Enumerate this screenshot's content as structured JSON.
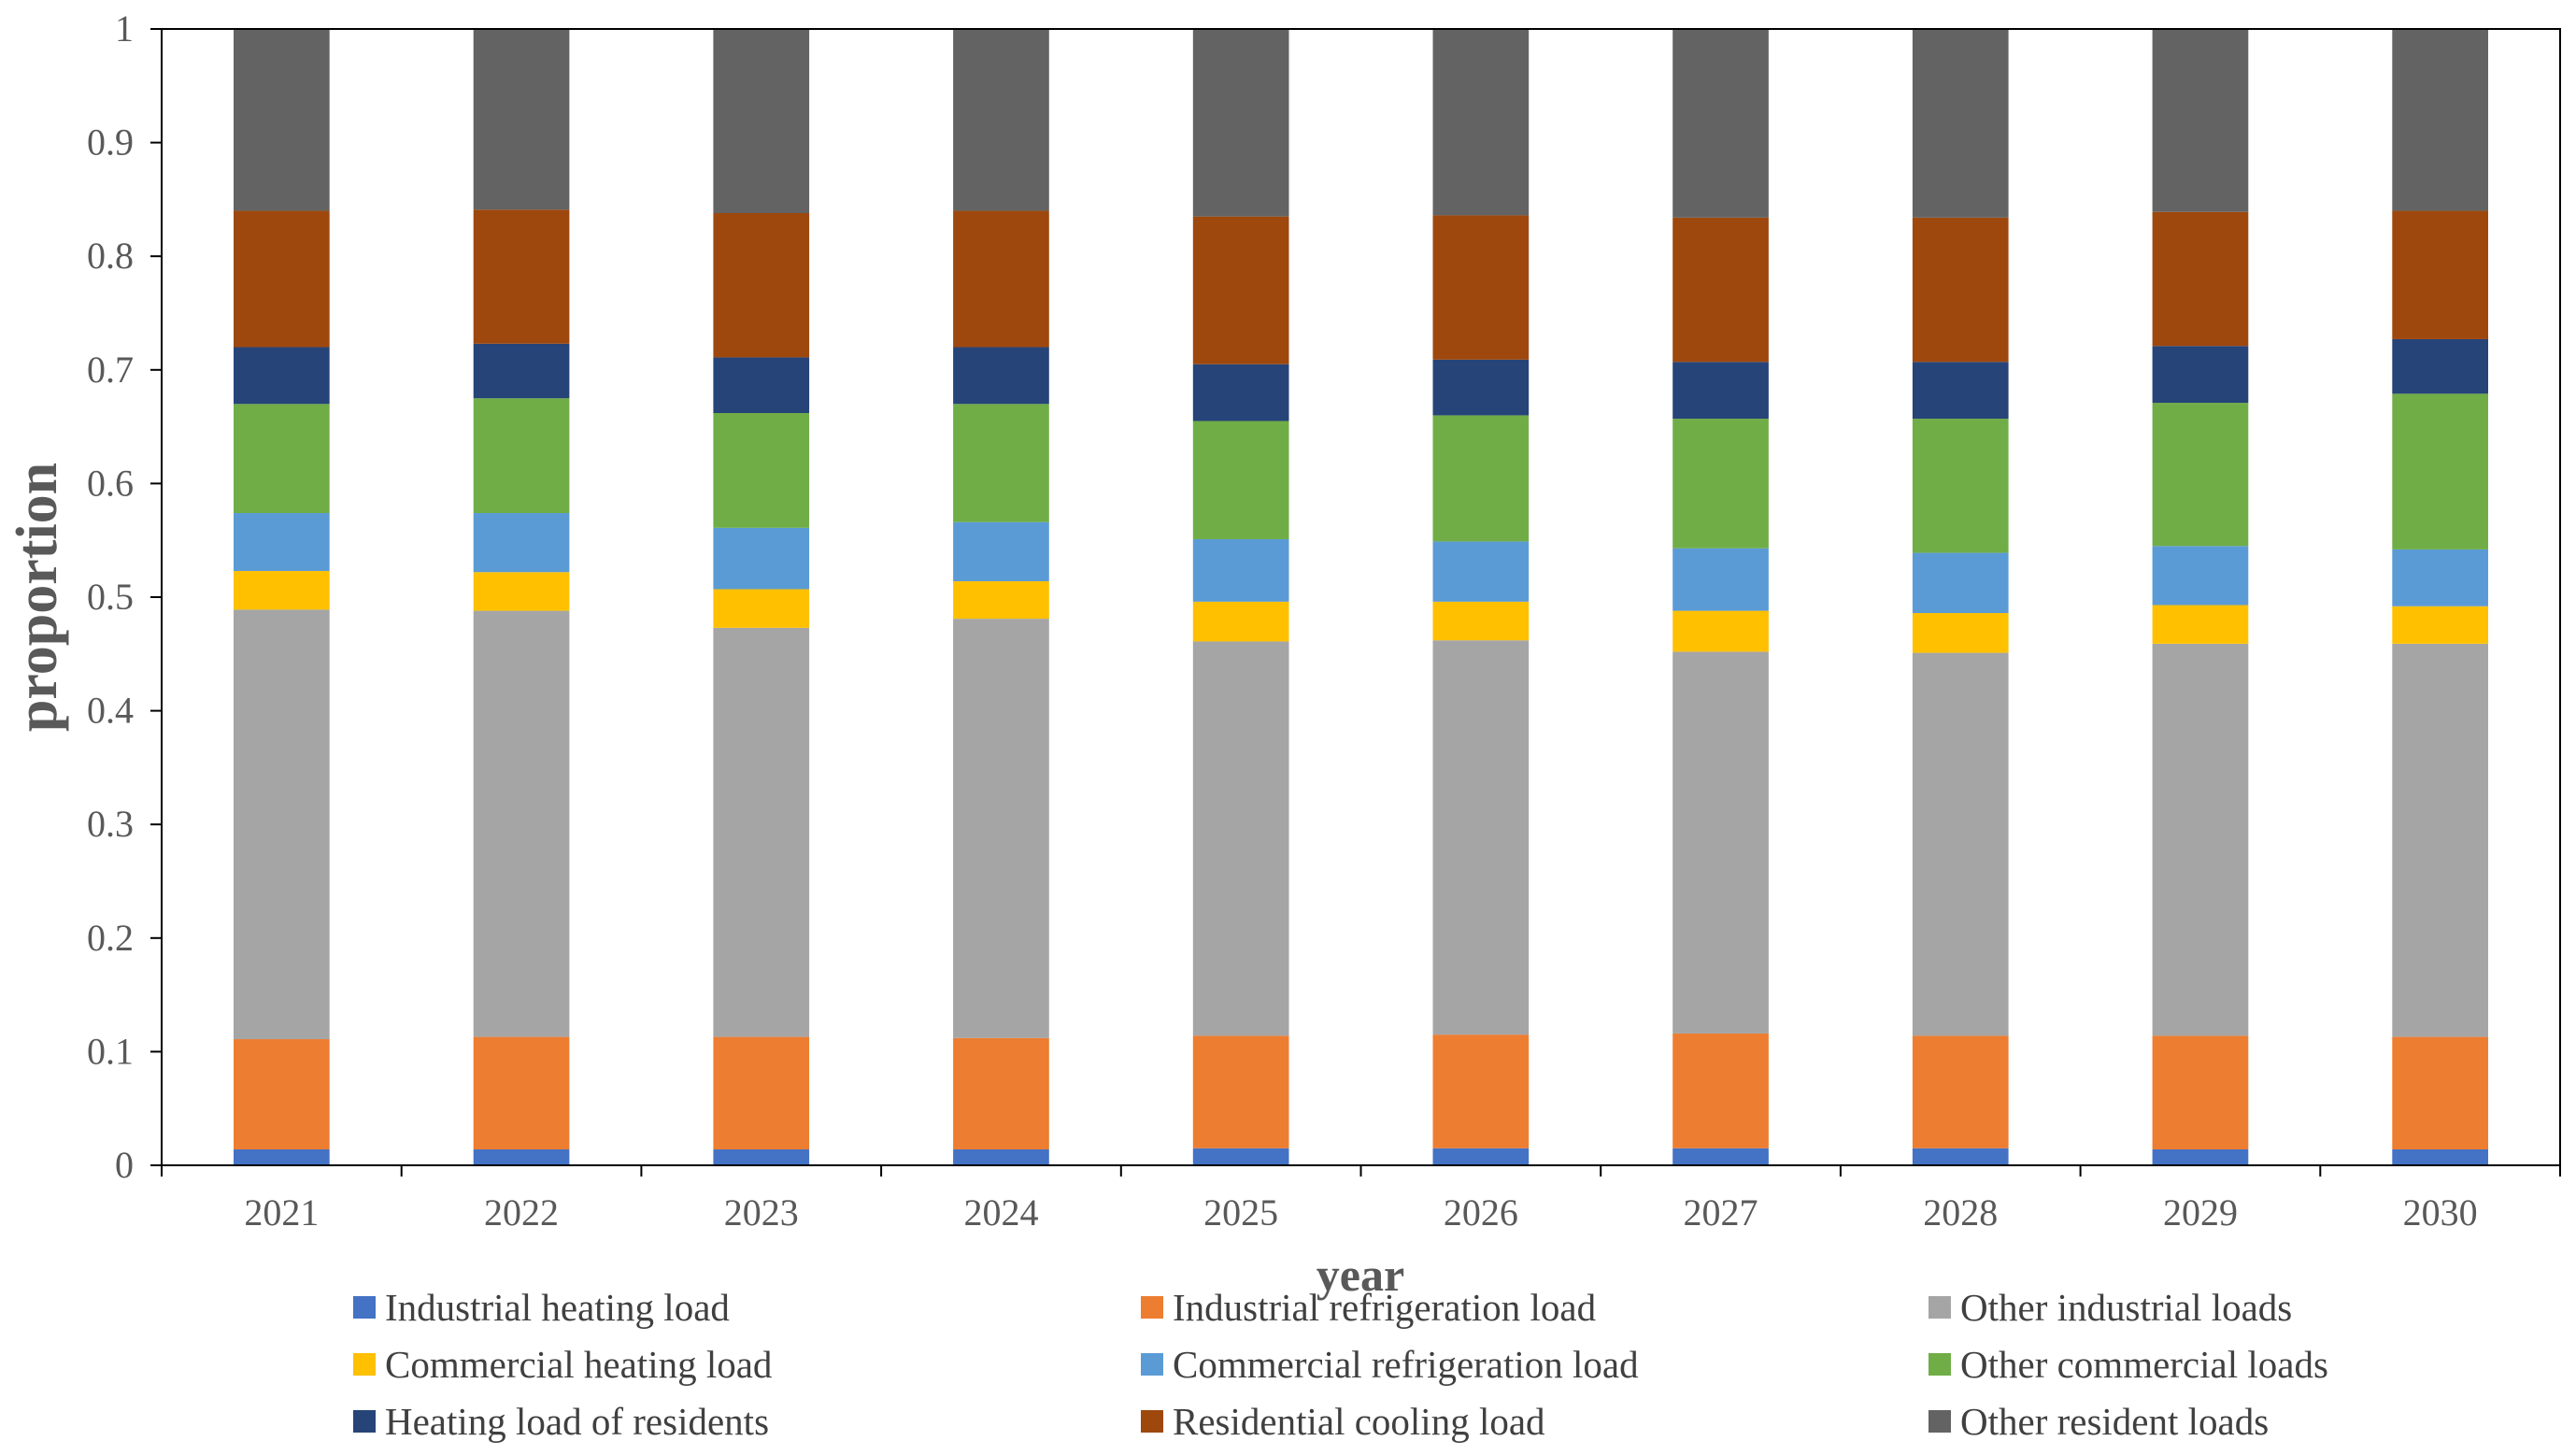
{
  "chart_data": {
    "type": "bar",
    "stacked": true,
    "title": "",
    "xlabel": "year",
    "ylabel": "proportion",
    "ylim": [
      0,
      1
    ],
    "yticks": [
      "0",
      "0.1",
      "0.2",
      "0.3",
      "0.4",
      "0.5",
      "0.6",
      "0.7",
      "0.8",
      "0.9",
      "1"
    ],
    "legend_position": "bottom",
    "categories": [
      "2021",
      "2022",
      "2023",
      "2024",
      "2025",
      "2026",
      "2027",
      "2028",
      "2029",
      "2030"
    ],
    "series": [
      {
        "name": "Industrial heating load",
        "color": "#4472C4",
        "values": [
          0.014,
          0.014,
          0.014,
          0.014,
          0.015,
          0.015,
          0.015,
          0.015,
          0.014,
          0.014
        ]
      },
      {
        "name": "Industrial refrigeration load",
        "color": "#ED7D31",
        "values": [
          0.097,
          0.099,
          0.099,
          0.098,
          0.099,
          0.1,
          0.101,
          0.099,
          0.1,
          0.099
        ]
      },
      {
        "name": "Other industrial loads",
        "color": "#A5A5A5",
        "values": [
          0.378,
          0.375,
          0.36,
          0.369,
          0.347,
          0.347,
          0.336,
          0.337,
          0.345,
          0.346
        ]
      },
      {
        "name": "Commercial heating load",
        "color": "#FFC000",
        "values": [
          0.034,
          0.034,
          0.034,
          0.033,
          0.035,
          0.034,
          0.036,
          0.035,
          0.034,
          0.033
        ]
      },
      {
        "name": "Commercial refrigeration load",
        "color": "#5B9BD5",
        "values": [
          0.051,
          0.052,
          0.054,
          0.052,
          0.055,
          0.053,
          0.055,
          0.053,
          0.052,
          0.05
        ]
      },
      {
        "name": "Other commercial loads",
        "color": "#70AD47",
        "values": [
          0.096,
          0.101,
          0.101,
          0.104,
          0.104,
          0.111,
          0.114,
          0.118,
          0.126,
          0.137
        ]
      },
      {
        "name": "Heating load of residents",
        "color": "#264478",
        "values": [
          0.05,
          0.048,
          0.049,
          0.05,
          0.05,
          0.049,
          0.05,
          0.05,
          0.05,
          0.048
        ]
      },
      {
        "name": "Residential cooling load",
        "color": "#9E480E",
        "values": [
          0.12,
          0.118,
          0.127,
          0.12,
          0.13,
          0.127,
          0.127,
          0.127,
          0.118,
          0.113
        ]
      },
      {
        "name": "Other resident loads",
        "color": "#636363",
        "values": [
          0.16,
          0.159,
          0.162,
          0.16,
          0.165,
          0.164,
          0.166,
          0.166,
          0.161,
          0.16
        ]
      }
    ]
  }
}
